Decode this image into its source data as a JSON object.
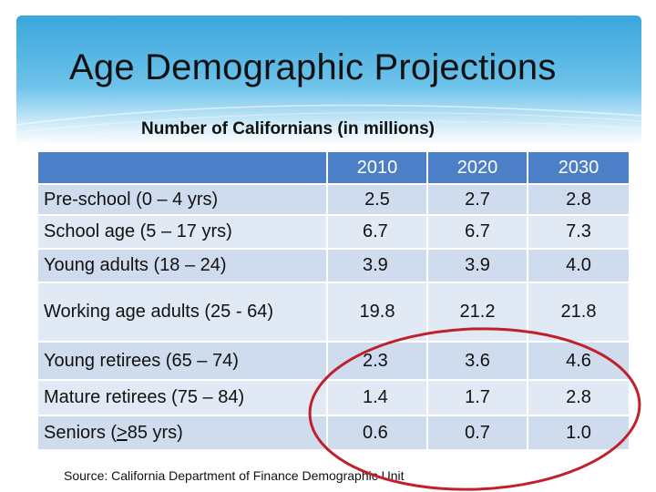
{
  "slide": {
    "title": "Age Demographic Projections",
    "subtitle": "Number of Californians (in millions)",
    "source": "Source: California Department of Finance Demographic Unit"
  },
  "table": {
    "columns": [
      "",
      "2010",
      "2020",
      "2030"
    ],
    "rows": [
      {
        "label": "Pre-school (0 – 4 yrs)",
        "values": [
          "2.5",
          "2.7",
          "2.8"
        ]
      },
      {
        "label": "School age (5 – 17 yrs)",
        "values": [
          "6.7",
          "6.7",
          "7.3"
        ]
      },
      {
        "label": "Young adults (18 – 24)",
        "values": [
          "3.9",
          "3.9",
          "4.0"
        ]
      },
      {
        "label": "Working  age adults (25 - 64)",
        "values": [
          "19.8",
          "21.2",
          "21.8"
        ]
      },
      {
        "label": "Young retirees (65 – 74)",
        "values": [
          "2.3",
          "3.6",
          "4.6"
        ]
      },
      {
        "label": "Mature retirees (75 – 84)",
        "values": [
          "1.4",
          "1.7",
          "2.8"
        ]
      },
      {
        "label_pre": "Seniors (",
        "label_ge": ">",
        "label_post": "85 yrs)",
        "values": [
          "0.6",
          "0.7",
          "1.0"
        ]
      }
    ]
  },
  "colors": {
    "header_blue": "#4b7fc7",
    "row_light": "#e1e9f4",
    "row_dark": "#cfdcee",
    "highlight_circle": "#c0202a"
  }
}
